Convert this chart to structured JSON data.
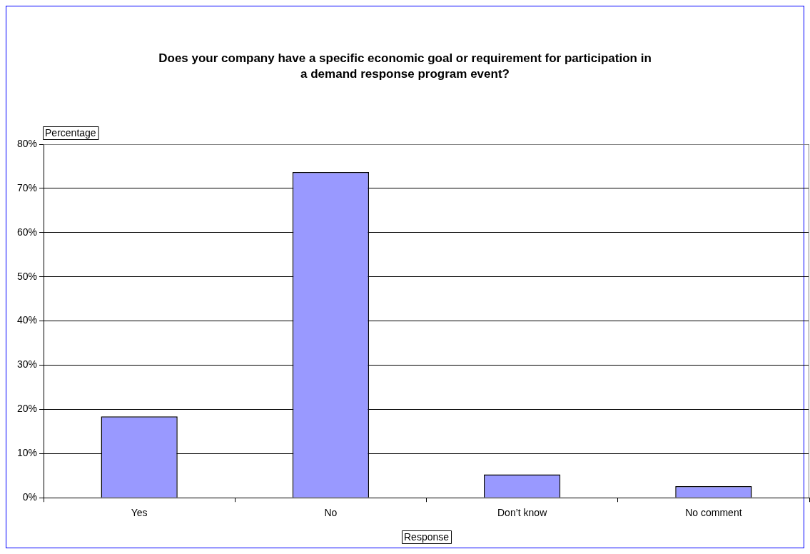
{
  "chart_data": {
    "type": "bar",
    "title": "Does your company have a specific economic goal or requirement for participation in a demand response program event?",
    "categories": [
      "Yes",
      "No",
      "Don’t know",
      "No comment"
    ],
    "values": [
      18.4,
      73.7,
      5.3,
      2.6
    ],
    "color": "#9999ff",
    "xlabel": "Response",
    "ylabel": "Percentage",
    "ylim": [
      0,
      80
    ],
    "yticks": [
      {
        "value": 0,
        "label": "0%"
      },
      {
        "value": 10,
        "label": "10%"
      },
      {
        "value": 20,
        "label": "20%"
      },
      {
        "value": 30,
        "label": "30%"
      },
      {
        "value": 40,
        "label": "40%"
      },
      {
        "value": 50,
        "label": "50%"
      },
      {
        "value": 60,
        "label": "60%"
      },
      {
        "value": 70,
        "label": "70%"
      },
      {
        "value": 80,
        "label": "80%"
      }
    ],
    "grid": "y",
    "legend": false
  }
}
